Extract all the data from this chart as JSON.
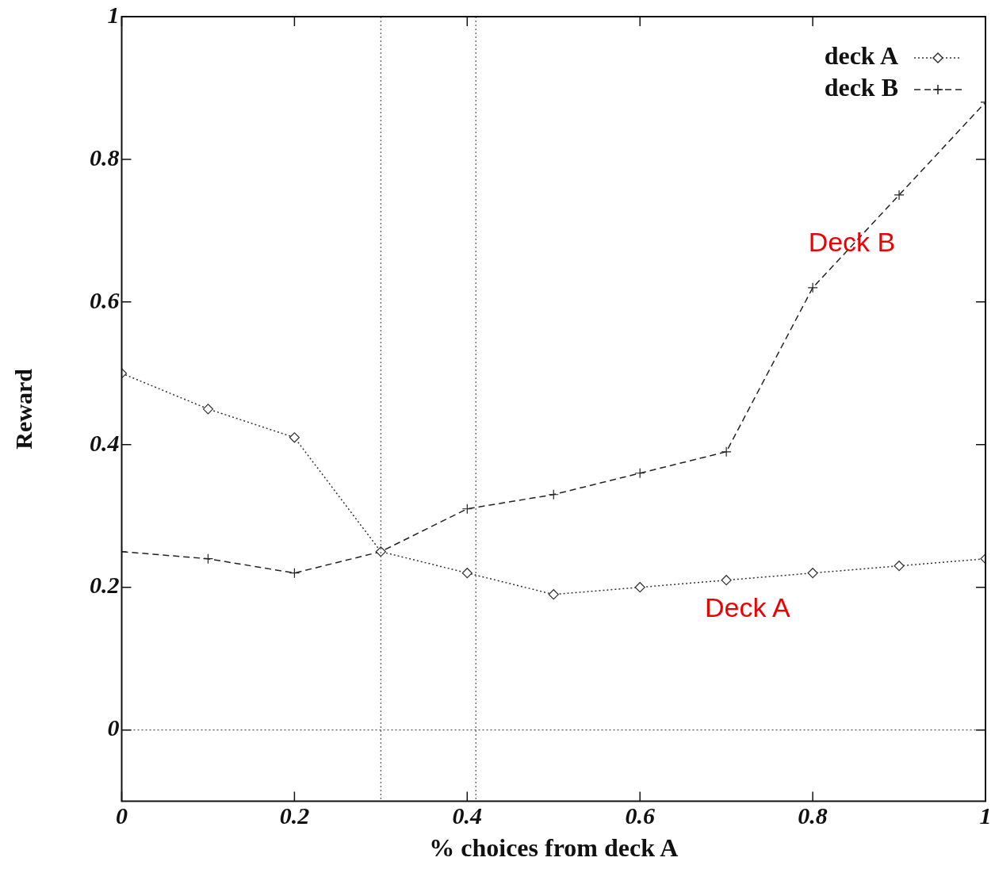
{
  "chart_data": {
    "type": "line",
    "xlabel": "% choices from deck A",
    "ylabel": "Reward",
    "x": [
      0,
      0.1,
      0.2,
      0.3,
      0.4,
      0.5,
      0.6,
      0.7,
      0.8,
      0.9,
      1
    ],
    "series": [
      {
        "name": "deck A",
        "color": "#333333",
        "marker": "diamond",
        "line_style": "dotted",
        "values": [
          0.5,
          0.45,
          0.41,
          0.25,
          0.22,
          0.19,
          0.2,
          0.21,
          0.22,
          0.23,
          0.24
        ]
      },
      {
        "name": "deck B",
        "color": "#222222",
        "marker": "cross",
        "line_style": "dashed",
        "values": [
          0.25,
          0.24,
          0.22,
          0.25,
          0.31,
          0.33,
          0.36,
          0.39,
          0.62,
          0.75,
          0.88
        ]
      }
    ],
    "xlim": [
      0,
      1
    ],
    "xticks": [
      0,
      0.2,
      0.4,
      0.6,
      0.8,
      1
    ],
    "ylim": [
      -0.1,
      1
    ],
    "yticks": [
      0,
      0.2,
      0.4,
      0.6,
      0.8,
      1
    ],
    "ref_lines": [
      {
        "axis": "x",
        "value": 0.3,
        "line_style": "dotted",
        "color": "#555555"
      },
      {
        "axis": "x",
        "value": 0.41,
        "line_style": "dotted",
        "color": "#555555"
      },
      {
        "axis": "y",
        "value": 0,
        "line_style": "dotted",
        "color": "#555555"
      }
    ],
    "annotations": [
      "Deck B",
      "Deck A"
    ],
    "legend": "top right",
    "grid": false
  }
}
